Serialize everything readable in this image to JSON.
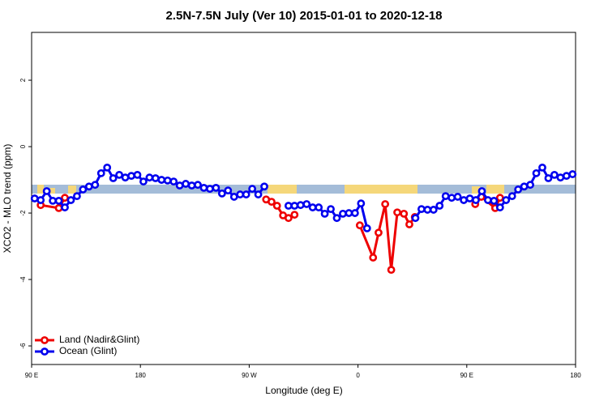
{
  "chart_data": {
    "type": "line",
    "title": "2.5N-7.5N July (Ver 10)   2015-01-01 to 2020-12-18",
    "xlabel": "Longitude (deg E)",
    "ylabel": "XCO2 - MLO trend (ppm)",
    "xlim": [
      90,
      540
    ],
    "xticks": [
      {
        "value": 90,
        "label": "90 E"
      },
      {
        "value": 180,
        "label": "180"
      },
      {
        "value": 270,
        "label": "90 W"
      },
      {
        "value": 360,
        "label": "0"
      },
      {
        "value": 450,
        "label": "90 E"
      },
      {
        "value": 540,
        "label": "180"
      }
    ],
    "ylim": [
      -6.56,
      3.44
    ],
    "yticks": [
      -6,
      -4,
      -2,
      0,
      2
    ],
    "legend": "bottomleft",
    "series": [
      {
        "name": "Land (Nadir&Glint)",
        "color": "#ee0000",
        "x": [
          97.5,
          112.5,
          117.5,
          120,
          284,
          288.5,
          293,
          298,
          302.5,
          307.5,
          330,
          361.5,
          372.5,
          377,
          382.5,
          387.5,
          392.5,
          398,
          402.5,
          407,
          430,
          457,
          462,
          473.5,
          477.5
        ],
        "values": [
          -1.76,
          -1.85,
          -1.54,
          null,
          -1.59,
          -1.66,
          -1.78,
          -2.07,
          -2.15,
          -2.05,
          null,
          -2.37,
          -3.34,
          -2.59,
          -1.73,
          -3.71,
          -1.98,
          -2.02,
          -2.34,
          -2.12,
          null,
          -1.73,
          -1.51,
          -1.85,
          -1.54
        ]
      },
      {
        "name": "Ocean (Glint)",
        "color": "#0000ee",
        "x": [
          92.5,
          97.5,
          102.5,
          107.5,
          112.5,
          117.5,
          122.5,
          127.5,
          132.5,
          137.5,
          142.5,
          147.5,
          152.5,
          157.5,
          162.5,
          167.5,
          172.5,
          177.5,
          182.5,
          187.5,
          192.5,
          197.5,
          202.5,
          207.5,
          212.5,
          217.5,
          222.5,
          227.5,
          232.5,
          237.5,
          242.5,
          247.5,
          252.5,
          257.5,
          262.5,
          267.5,
          272.5,
          277.5,
          282.5,
          292.5,
          302.5,
          307.5,
          312.5,
          317.5,
          322.5,
          327.5,
          332.5,
          337.5,
          342.5,
          347.5,
          352.5,
          357.5,
          362.5,
          367.5,
          387.5,
          407.5,
          412.5,
          417.5,
          422.5,
          427.5,
          432.5,
          437.5,
          442.5,
          447.5,
          452.5,
          457.5,
          462.5,
          467.5,
          472.5,
          477.5,
          482.5,
          487.5,
          492.5,
          497.5,
          502.5,
          507.5,
          512.5,
          517.5,
          522.5,
          527.5,
          532.5,
          537.5
        ],
        "values": [
          -1.56,
          -1.61,
          -1.34,
          -1.63,
          -1.63,
          -1.83,
          -1.61,
          -1.49,
          -1.29,
          -1.2,
          -1.15,
          -0.8,
          -0.63,
          -0.95,
          -0.85,
          -0.93,
          -0.88,
          -0.85,
          -1.05,
          -0.93,
          -0.95,
          -1.0,
          -1.02,
          -1.05,
          -1.17,
          -1.12,
          -1.17,
          -1.15,
          -1.24,
          -1.27,
          -1.24,
          -1.41,
          -1.32,
          -1.51,
          -1.44,
          -1.44,
          -1.27,
          -1.44,
          -1.2,
          null,
          -1.78,
          -1.78,
          -1.76,
          -1.73,
          -1.83,
          -1.83,
          -2.02,
          -1.88,
          -2.15,
          -2.02,
          -2.0,
          -2.0,
          -1.71,
          -2.46,
          null,
          -2.15,
          -1.88,
          -1.9,
          -1.9,
          -1.78,
          -1.49,
          -1.54,
          -1.51,
          -1.61,
          -1.56,
          -1.61,
          -1.34,
          -1.61,
          -1.63,
          -1.83,
          -1.61,
          -1.49,
          -1.29,
          -1.2,
          -1.15,
          -0.8,
          -0.63,
          -0.95,
          -0.85,
          -0.93,
          -0.88,
          -0.83
        ]
      }
    ]
  }
}
